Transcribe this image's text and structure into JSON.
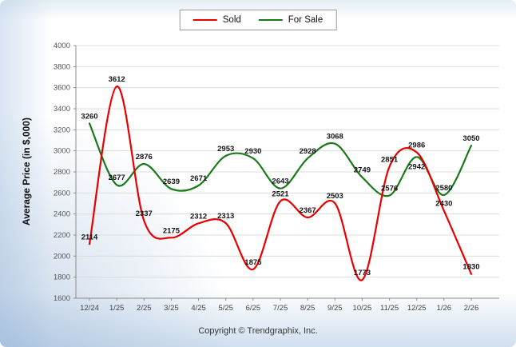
{
  "chart_data": {
    "type": "line",
    "categories": [
      "12/24",
      "1/25",
      "2/25",
      "3/25",
      "4/25",
      "5/25",
      "6/25",
      "7/25",
      "8/25",
      "9/25",
      "10/25",
      "11/25",
      "12/25",
      "1/26",
      "2/26"
    ],
    "series": [
      {
        "name": "Sold",
        "color": "#e80000",
        "values": [
          2114,
          3612,
          2337,
          2175,
          2312,
          2313,
          1875,
          2521,
          2367,
          2503,
          1773,
          2851,
          2986,
          2430,
          1830
        ]
      },
      {
        "name": "For Sale",
        "color": "#1a7a1a",
        "values": [
          3260,
          2677,
          2876,
          2639,
          2671,
          2953,
          2930,
          2643,
          2928,
          3068,
          2749,
          2576,
          2942,
          2580,
          3050
        ]
      }
    ],
    "title": "",
    "xlabel": "",
    "ylabel": "Average Price (in $,000)",
    "ylim": [
      1600,
      4000
    ],
    "ytick_step": 200,
    "grid": true,
    "legend_position": "top-center",
    "point_labels": true
  },
  "footer": {
    "copyright": "Copyright © Trendgraphix, Inc."
  }
}
